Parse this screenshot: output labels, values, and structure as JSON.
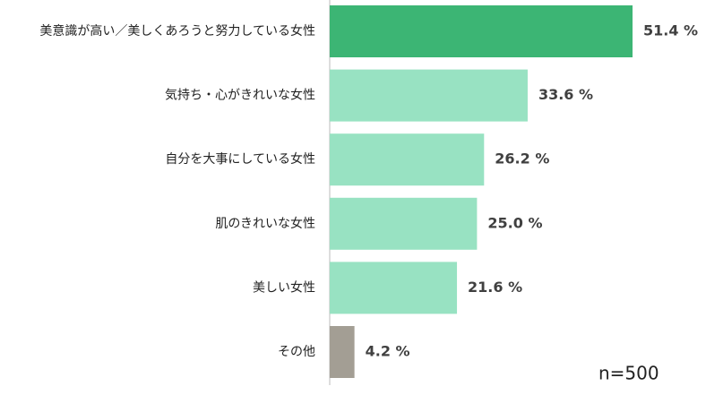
{
  "chart_data": {
    "type": "barh",
    "categories": [
      "美意識が高い／美しくあろうと努力している女性",
      "気持ち・心がきれいな女性",
      "自分を大事にしている女性",
      "肌のきれいな女性",
      "美しい女性",
      "その他"
    ],
    "values": [
      51.4,
      33.6,
      26.2,
      25.0,
      21.6,
      4.2
    ],
    "value_labels": [
      "51.4 %",
      "33.6 %",
      "26.2 %",
      "25.0 %",
      "21.6 %",
      "4.2 %"
    ],
    "colors": [
      "#3cb574",
      "#98e2c2",
      "#98e2c2",
      "#98e2c2",
      "#98e2c2",
      "#a39e94"
    ],
    "annotation": "n=500"
  }
}
